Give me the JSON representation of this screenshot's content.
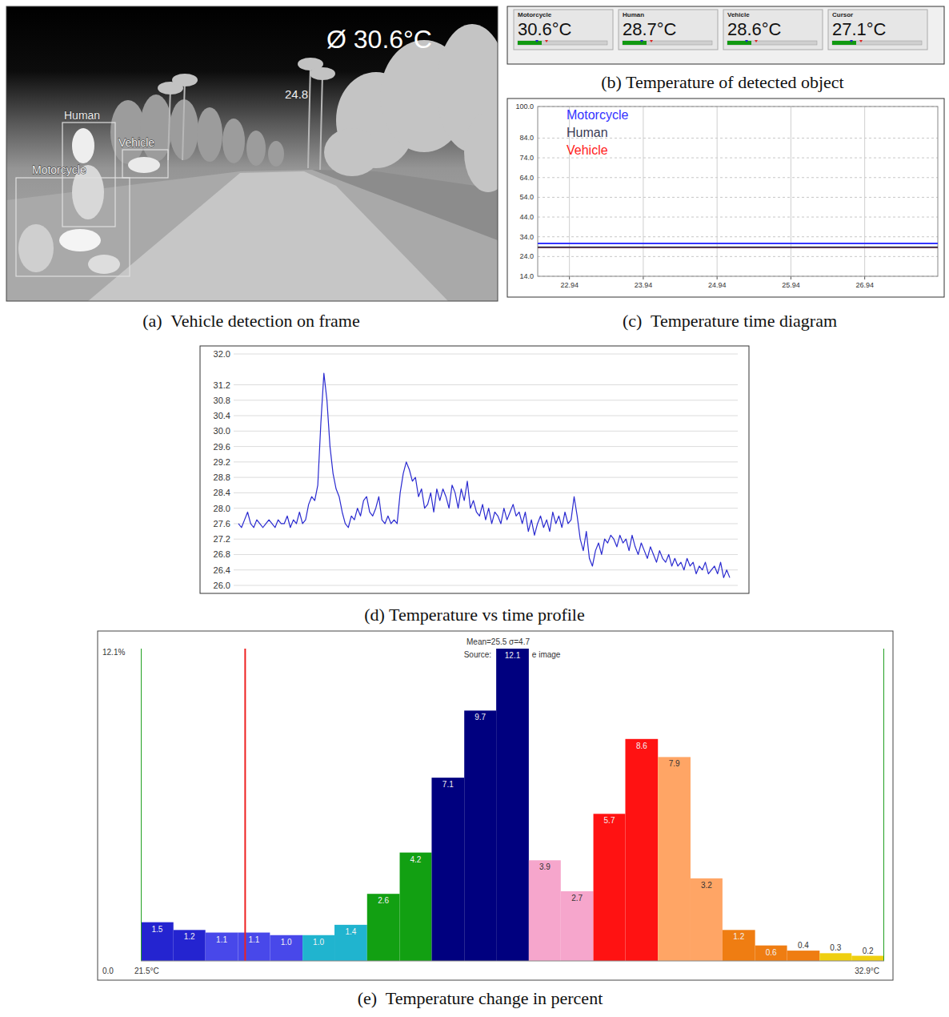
{
  "frame": {
    "caption": "(a)  Vehicle detection on frame",
    "overlay_text": "Ø 30.6°C",
    "spot_label": "24.8",
    "detections": [
      "Human",
      "Vehicle",
      "Motorcycle"
    ]
  },
  "readouts": {
    "caption": "(b) Temperature of detected object",
    "items": [
      {
        "name": "Motorcycle",
        "text": "30.6°C"
      },
      {
        "name": "Human",
        "text": "28.7°C"
      },
      {
        "name": "Vehicle",
        "text": "28.6°C"
      },
      {
        "name": "Cursor",
        "text": "27.1°C"
      }
    ]
  },
  "chart_data": [
    {
      "type": "line",
      "title": "(c)  Temperature time diagram",
      "x": [
        22.51,
        25.0,
        27.93
      ],
      "series": [
        {
          "name": "Motorcycle",
          "color": "#3434ff",
          "values": [
            30.6,
            30.6,
            30.6
          ]
        },
        {
          "name": "Human",
          "color": "#3a3a55",
          "values": [
            28.7,
            28.7,
            28.7
          ]
        },
        {
          "name": "Vehicle",
          "color": "#ff2020",
          "values": [
            28.6,
            28.6,
            28.6
          ]
        }
      ],
      "xlim": [
        22.51,
        27.93
      ],
      "xticks": [
        22.94,
        23.94,
        24.94,
        25.94,
        26.94
      ],
      "ylim": [
        14,
        100
      ],
      "yticks": [
        {
          "value": 14,
          "label": "14.0"
        },
        {
          "value": 24,
          "label": "24.0"
        },
        {
          "value": 34,
          "label": "34.0"
        },
        {
          "value": 44,
          "label": "44.0"
        },
        {
          "value": 54,
          "label": "54.0"
        },
        {
          "value": 64,
          "label": "64.0"
        },
        {
          "value": 74,
          "label": "74.0"
        },
        {
          "value": 84,
          "label": "84.0"
        },
        {
          "value": 100,
          "label": "100.0"
        }
      ],
      "grid": true,
      "legend": "upper left"
    },
    {
      "type": "line",
      "title": "(d) Temperature vs time profile",
      "color": "#2a2ad0",
      "values": [
        27.6,
        27.5,
        27.7,
        27.9,
        27.6,
        27.5,
        27.7,
        27.6,
        27.5,
        27.6,
        27.7,
        27.6,
        27.5,
        27.7,
        27.6,
        27.6,
        27.8,
        27.5,
        27.7,
        27.6,
        27.9,
        27.6,
        27.7,
        28.1,
        28.3,
        28.2,
        28.6,
        30.2,
        31.5,
        30.8,
        29.6,
        28.9,
        28.5,
        28.3,
        27.9,
        27.6,
        27.5,
        27.8,
        27.7,
        28.0,
        27.8,
        28.2,
        28.3,
        27.9,
        27.8,
        28.0,
        28.3,
        27.7,
        27.6,
        27.8,
        27.6,
        27.7,
        27.6,
        28.4,
        28.9,
        29.2,
        29.0,
        28.7,
        28.8,
        28.3,
        28.5,
        28.0,
        28.1,
        28.4,
        27.9,
        28.5,
        28.2,
        28.5,
        28.3,
        28.0,
        28.6,
        28.4,
        28.0,
        28.5,
        28.2,
        28.7,
        28.0,
        28.2,
        27.9,
        27.8,
        28.1,
        27.7,
        28.0,
        27.6,
        27.9,
        27.8,
        27.6,
        28.0,
        27.7,
        27.9,
        28.1,
        27.8,
        27.9,
        27.6,
        27.9,
        27.4,
        27.7,
        27.3,
        27.6,
        27.8,
        27.5,
        27.7,
        27.4,
        27.9,
        27.6,
        27.8,
        27.5,
        27.9,
        27.6,
        27.7,
        28.3,
        27.8,
        27.2,
        26.9,
        27.4,
        26.7,
        26.5,
        26.9,
        27.1,
        26.8,
        27.2,
        27.1,
        27.3,
        27.2,
        27.0,
        27.3,
        27.1,
        27.2,
        26.9,
        27.3,
        27.0,
        26.8,
        27.1,
        26.9,
        26.7,
        27.0,
        26.8,
        26.6,
        26.9,
        26.7,
        26.6,
        26.8,
        26.5,
        26.7,
        26.5,
        26.6,
        26.4,
        26.7,
        26.5,
        26.6,
        26.3,
        26.5,
        26.4,
        26.6,
        26.3,
        26.4,
        26.5,
        26.3,
        26.6,
        26.2,
        26.4,
        26.2
      ],
      "ylim": [
        26,
        32
      ],
      "yticks": [
        {
          "value": 26,
          "label": "26.0"
        },
        {
          "value": 26.4,
          "label": "26.4"
        },
        {
          "value": 26.8,
          "label": "26.8"
        },
        {
          "value": 27.2,
          "label": "27.2"
        },
        {
          "value": 27.6,
          "label": "27.6"
        },
        {
          "value": 28,
          "label": "28.0"
        },
        {
          "value": 28.4,
          "label": "28.4"
        },
        {
          "value": 28.8,
          "label": "28.8"
        },
        {
          "value": 29.2,
          "label": "29.2"
        },
        {
          "value": 29.6,
          "label": "29.6"
        },
        {
          "value": 30,
          "label": "30.0"
        },
        {
          "value": 30.4,
          "label": "30.4"
        },
        {
          "value": 30.8,
          "label": "30.8"
        },
        {
          "value": 31.2,
          "label": "31.2"
        },
        {
          "value": 32,
          "label": "32.0"
        }
      ],
      "grid": true,
      "tick_labels": "y"
    },
    {
      "type": "histogram",
      "title": "(e)  Temperature change in percent",
      "bins": [
        21.5,
        22.0,
        22.49,
        22.99,
        23.48,
        23.98,
        24.47,
        24.97,
        25.47,
        25.96,
        26.46,
        26.95,
        27.45,
        27.94,
        28.44,
        28.93,
        29.43,
        29.93,
        30.42,
        30.92,
        31.41,
        31.91,
        32.4,
        32.9
      ],
      "values": [
        1.5,
        1.2,
        1.1,
        1.1,
        1.0,
        1.0,
        1.4,
        2.6,
        4.2,
        7.1,
        9.7,
        12.1,
        3.9,
        2.7,
        5.7,
        8.6,
        7.9,
        3.2,
        1.2,
        0.6,
        0.4,
        0.3,
        0.2
      ],
      "value_labels": [
        "1.5",
        "1.2",
        "1.1",
        "1.1",
        "1.0",
        "1.0",
        "1.4",
        "2.6",
        "4.2",
        "7.1",
        "9.7",
        "12.1",
        "3.9",
        "2.7",
        "5.7",
        "8.6",
        "7.9",
        "3.2",
        "1.2",
        "0.6",
        "0.4",
        "0.3",
        "0.2"
      ],
      "colors": [
        "#2424d0",
        "#2424d0",
        "#4848ea",
        "#4848ea",
        "#4848ea",
        "#20b4cf",
        "#20b4cf",
        "#12a012",
        "#12a012",
        "#00007f",
        "#00007f",
        "#00007f",
        "#f6a6cc",
        "#f6a6cc",
        "#ff1212",
        "#ff1212",
        "#ffa565",
        "#ffa565",
        "#ef7d12",
        "#ef7d12",
        "#ef7d12",
        "#efcf10",
        "#efcf10"
      ],
      "xlim": [
        21.5,
        32.9
      ],
      "xticks": [
        {
          "value": 21.5,
          "label": "21.5°C"
        },
        {
          "value": 32.9,
          "label": "32.9°C"
        }
      ],
      "ylim": [
        0,
        12.1
      ],
      "yticks": [
        {
          "value": 0,
          "label": "0.0"
        },
        {
          "value": 12.1,
          "label": "12.1%"
        }
      ],
      "data_labels": true,
      "annotations": [
        "Mean=25.5 σ=4.7",
        "Source:",
        "e image"
      ],
      "reference_lines": [
        {
          "value": 21.5,
          "color": "#22a022"
        },
        {
          "value": 23.1,
          "color": "#ee2222"
        },
        {
          "value": 32.9,
          "color": "#22a022"
        }
      ]
    }
  ]
}
